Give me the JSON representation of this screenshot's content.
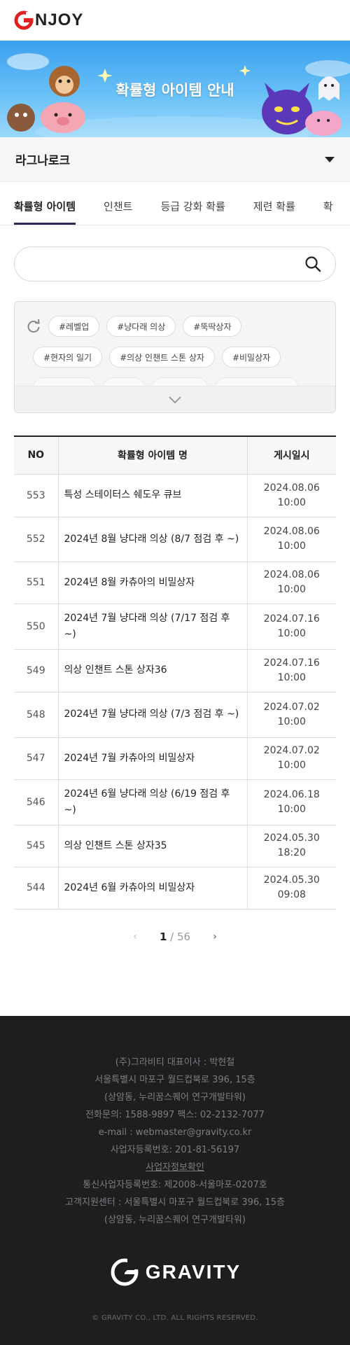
{
  "header": {
    "logo_text": "NJOY"
  },
  "banner": {
    "title": "확률형 아이템 안내"
  },
  "game_select": {
    "selected": "라그나로크"
  },
  "tabs": [
    {
      "label": "확률형 아이템",
      "active": true
    },
    {
      "label": "인챈트"
    },
    {
      "label": "등급 강화 확률"
    },
    {
      "label": "제련 확률"
    },
    {
      "label": "확"
    }
  ],
  "search": {
    "placeholder": ""
  },
  "tags": {
    "row1": [
      "#레벨업",
      "#냥다래 의상",
      "#뚝딱상자"
    ],
    "row2": [
      "#현자의 일기",
      "#의상 인챈트 스톤 상자",
      "#비밀상자"
    ]
  },
  "table": {
    "headers": [
      "NO",
      "확률형 아이템 명",
      "게시일시"
    ],
    "rows": [
      {
        "no": "553",
        "name": "특성 스테이터스 쉐도우 큐브",
        "date": "2024.08.06",
        "time": "10:00"
      },
      {
        "no": "552",
        "name": "2024년 8월 냥다래 의상 (8/7 점검 후 ~)",
        "date": "2024.08.06",
        "time": "10:00"
      },
      {
        "no": "551",
        "name": "2024년 8월 카츄아의 비밀상자",
        "date": "2024.08.06",
        "time": "10:00"
      },
      {
        "no": "550",
        "name": "2024년 7월 냥다래 의상 (7/17 점검 후 ~)",
        "date": "2024.07.16",
        "time": "10:00"
      },
      {
        "no": "549",
        "name": "의상 인챈트 스톤 상자36",
        "date": "2024.07.16",
        "time": "10:00"
      },
      {
        "no": "548",
        "name": "2024년 7월 냥다래 의상 (7/3 점검 후 ~)",
        "date": "2024.07.02",
        "time": "10:00"
      },
      {
        "no": "547",
        "name": "2024년 7월 카츄아의 비밀상자",
        "date": "2024.07.02",
        "time": "10:00"
      },
      {
        "no": "546",
        "name": "2024년 6월 냥다래 의상 (6/19 점검 후 ~)",
        "date": "2024.06.18",
        "time": "10:00"
      },
      {
        "no": "545",
        "name": "의상 인챈트 스톤 상자35",
        "date": "2024.05.30",
        "time": "18:20"
      },
      {
        "no": "544",
        "name": "2024년 6월 카츄아의 비밀상자",
        "date": "2024.05.30",
        "time": "09:08"
      }
    ]
  },
  "pager": {
    "current": "1",
    "total": "56",
    "prev": "‹",
    "next": "›"
  },
  "footer": {
    "lines": [
      "(주)그라비티   대표이사 : 박현철",
      "서울특별시 마포구 월드컵북로 396, 15층",
      "(상암동, 누리꿈스퀘어 연구개발타워)",
      "전화문의: 1588-9897   팩스: 02-2132-7077",
      "e-mail : webmaster@gravity.co.kr",
      "사업자등록번호: 201-81-56197",
      "사업자정보확인",
      "통신사업자등록번호: 제2008-서울마포-0207호",
      "고객지원센터 : 서울특별시 마포구 월드컵북로 396, 15층",
      "(상암동, 누리꿈스퀘어 연구개발타워)"
    ],
    "logo_text": "GRAVITY",
    "copyright": "© GRAVITY CO., LTD. ALL RIGHTS RESERVED."
  },
  "colors": {
    "banner_sky": "#4aa8f0",
    "footer_bg": "#1e1e20",
    "logo_red": "#e02020",
    "tab_underline": "#2b2b55"
  }
}
